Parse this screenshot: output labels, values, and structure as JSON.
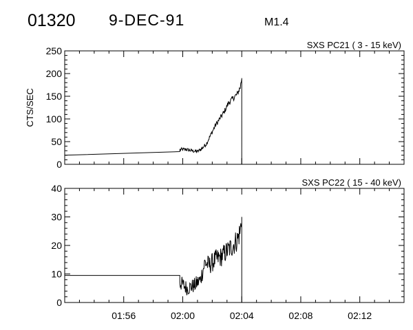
{
  "header": {
    "event_id": "01320",
    "date": "9-DEC-91",
    "goes_class": "M1.4"
  },
  "chart_data": [
    {
      "type": "line",
      "title": "SXS PC21  (  3 - 15 keV)",
      "xlabel": "",
      "ylabel": "CTS/SEC",
      "x_unit": "minutes after 01:52",
      "xlim": [
        0,
        23
      ],
      "ylim": [
        0,
        250
      ],
      "y_ticks": [
        0,
        50,
        100,
        150,
        200,
        250
      ],
      "x_tick_labels": [
        "01:56",
        "02:00",
        "02:04",
        "02:08",
        "02:12"
      ],
      "x_tick_values": [
        4,
        8,
        12,
        16,
        20
      ],
      "series": [
        {
          "x": [
            0,
            7.8,
            7.8,
            8.2,
            8.6,
            9.0,
            9.3,
            9.6,
            9.9,
            10.2,
            10.5,
            10.8,
            11.1,
            11.4,
            11.7,
            11.9,
            12.0,
            12.0
          ],
          "y": [
            20,
            28,
            32,
            33,
            30,
            28,
            35,
            45,
            65,
            85,
            100,
            115,
            135,
            145,
            155,
            170,
            190,
            0
          ]
        }
      ]
    },
    {
      "type": "line",
      "title": "SXS PC22  ( 15 - 40 keV)",
      "xlabel": "",
      "ylabel": "",
      "x_unit": "minutes after 01:52",
      "xlim": [
        0,
        23
      ],
      "ylim": [
        0,
        40
      ],
      "y_ticks": [
        0,
        10,
        20,
        30,
        40
      ],
      "x_tick_labels": [
        "01:56",
        "02:00",
        "02:04",
        "02:08",
        "02:12"
      ],
      "x_tick_values": [
        4,
        8,
        12,
        16,
        20
      ],
      "series": [
        {
          "x": [
            0,
            7.8,
            7.8,
            8.3,
            8.8,
            9.2,
            9.5,
            9.8,
            10.2,
            10.6,
            11.0,
            11.4,
            11.7,
            11.9,
            12.0,
            12.0
          ],
          "y": [
            9.5,
            9.5,
            7,
            5,
            6,
            8,
            14,
            13,
            15,
            16,
            18,
            20,
            22,
            25,
            30,
            0
          ]
        }
      ]
    }
  ]
}
